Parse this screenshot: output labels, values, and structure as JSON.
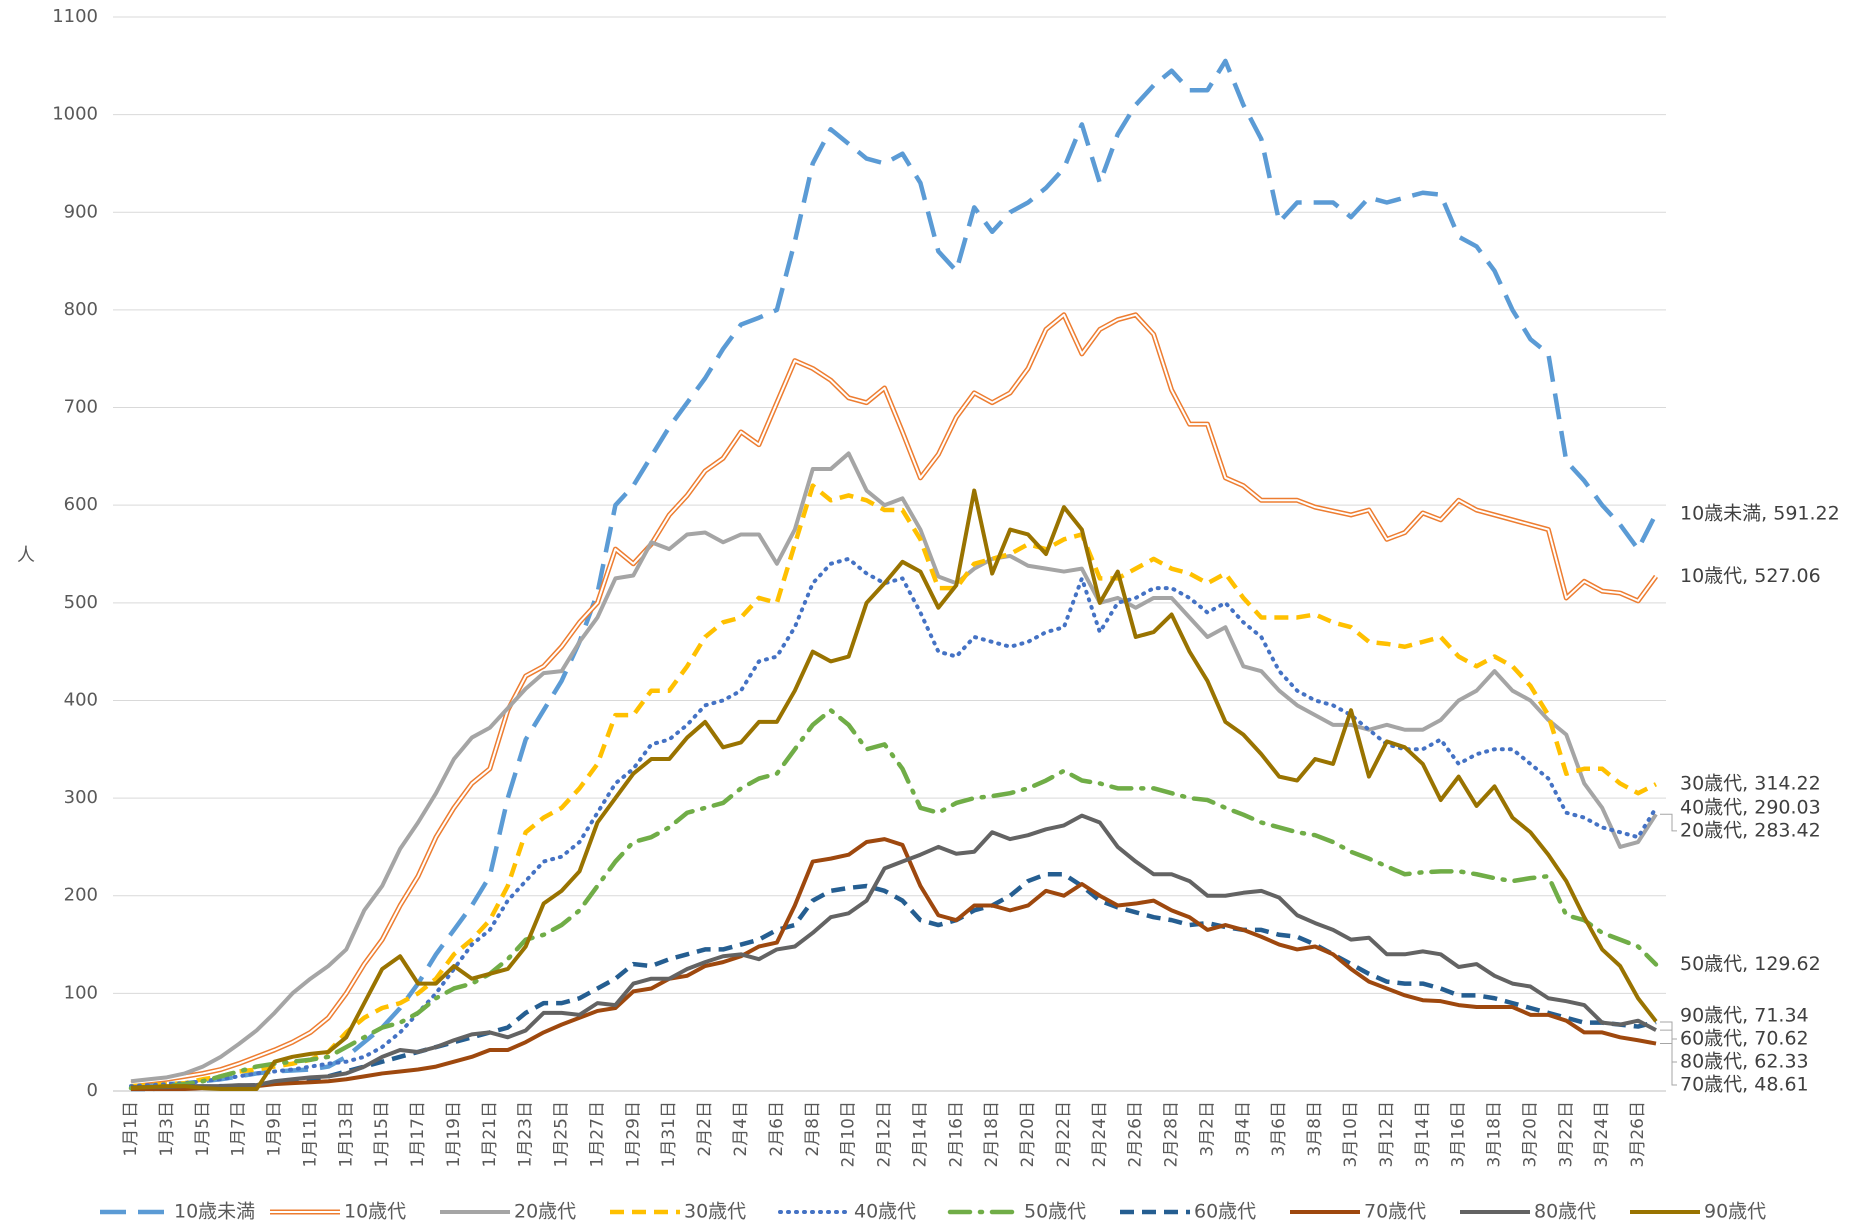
{
  "chart_data": {
    "type": "line",
    "y_label": "人",
    "ylim": [
      0,
      1100
    ],
    "yticks": [
      0,
      100,
      200,
      300,
      400,
      500,
      600,
      700,
      800,
      900,
      1000,
      1100
    ],
    "grid": true,
    "categories": [
      "1月1日",
      null,
      "1月3日",
      null,
      "1月5日",
      null,
      "1月7日",
      null,
      "1月9日",
      null,
      "1月11日",
      null,
      "1月13日",
      null,
      "1月15日",
      null,
      "1月17日",
      null,
      "1月19日",
      null,
      "1月21日",
      null,
      "1月23日",
      null,
      "1月25日",
      null,
      "1月27日",
      null,
      "1月29日",
      null,
      "1月31日",
      null,
      "2月2日",
      null,
      "2月4日",
      null,
      "2月6日",
      null,
      "2月8日",
      null,
      "2月10日",
      null,
      "2月12日",
      null,
      "2月14日",
      null,
      "2月16日",
      null,
      "2月18日",
      null,
      "2月20日",
      null,
      "2月22日",
      null,
      "2月24日",
      null,
      "2月26日",
      null,
      "2月28日",
      null,
      "3月2日",
      null,
      "3月4日",
      null,
      "3月6日",
      null,
      "3月8日",
      null,
      "3月10日",
      null,
      "3月12日",
      null,
      "3月14日",
      null,
      "3月16日",
      null,
      "3月18日",
      null,
      "3月20日",
      null,
      "3月22日",
      null,
      "3月24日",
      null,
      "3月26日",
      null
    ],
    "series": [
      {
        "name": "10歳未満",
        "color": "#5B9BD5",
        "style": "longdash",
        "end_label": "10歳未満, 591.22",
        "values": [
          5,
          6,
          7,
          8,
          10,
          12,
          15,
          18,
          20,
          21,
          22,
          25,
          35,
          50,
          65,
          85,
          110,
          140,
          165,
          190,
          220,
          300,
          360,
          390,
          420,
          460,
          510,
          600,
          620,
          650,
          680,
          705,
          730,
          760,
          785,
          792,
          800,
          870,
          950,
          985,
          970,
          955,
          950,
          960,
          930,
          860,
          840,
          905,
          880,
          900,
          910,
          925,
          945,
          990,
          930,
          980,
          1010,
          1030,
          1045,
          1025,
          1025,
          1055,
          1010,
          975,
          890,
          910,
          910,
          910,
          895,
          915,
          910,
          915,
          920,
          918,
          875,
          865,
          840,
          800,
          770,
          755,
          645,
          625,
          600,
          580,
          555,
          591.22
        ]
      },
      {
        "name": "10歳代",
        "color": "#ED7D31",
        "style": "double",
        "end_label": "10歳代, 527.06",
        "values": [
          8,
          10,
          12,
          15,
          18,
          22,
          28,
          35,
          42,
          50,
          60,
          75,
          100,
          130,
          155,
          190,
          220,
          260,
          290,
          315,
          330,
          390,
          425,
          435,
          455,
          480,
          500,
          555,
          540,
          560,
          590,
          610,
          635,
          648,
          675,
          662,
          705,
          748,
          740,
          728,
          710,
          705,
          720,
          675,
          628,
          652,
          690,
          715,
          705,
          715,
          740,
          780,
          795,
          755,
          780,
          790,
          795,
          775,
          718,
          683,
          683,
          628,
          620,
          605,
          605,
          605,
          598,
          594,
          590,
          595,
          565,
          572,
          592,
          585,
          605,
          595,
          590,
          585,
          580,
          575,
          505,
          522,
          512,
          510,
          502,
          527.06
        ]
      },
      {
        "name": "20歳代",
        "color": "#A5A5A5",
        "style": "solid",
        "end_label": "20歳代, 283.42",
        "values": [
          10,
          12,
          14,
          18,
          25,
          35,
          48,
          62,
          80,
          100,
          115,
          128,
          145,
          185,
          210,
          248,
          275,
          305,
          340,
          362,
          372,
          392,
          412,
          428,
          430,
          460,
          485,
          525,
          528,
          562,
          555,
          570,
          572,
          562,
          570,
          570,
          540,
          575,
          637,
          637,
          653,
          615,
          600,
          607,
          575,
          527,
          520,
          535,
          545,
          548,
          538,
          535,
          532,
          535,
          500,
          505,
          495,
          505,
          505,
          485,
          465,
          475,
          435,
          430,
          410,
          395,
          385,
          375,
          375,
          370,
          375,
          370,
          370,
          380,
          400,
          410,
          430,
          410,
          400,
          380,
          365,
          315,
          290,
          250,
          255,
          283.42
        ]
      },
      {
        "name": "30歳代",
        "color": "#FFC000",
        "style": "dash",
        "end_label": "30歳代, 314.22",
        "values": [
          5,
          6,
          7,
          8,
          12,
          15,
          20,
          22,
          25,
          28,
          32,
          40,
          60,
          75,
          85,
          90,
          100,
          115,
          140,
          155,
          175,
          210,
          265,
          280,
          290,
          310,
          335,
          385,
          385,
          410,
          410,
          435,
          465,
          480,
          485,
          505,
          500,
          560,
          620,
          605,
          610,
          605,
          595,
          595,
          565,
          515,
          515,
          540,
          545,
          550,
          560,
          555,
          565,
          570,
          525,
          525,
          535,
          545,
          535,
          530,
          520,
          530,
          505,
          485,
          485,
          485,
          488,
          480,
          475,
          460,
          458,
          455,
          460,
          465,
          445,
          435,
          445,
          435,
          415,
          385,
          325,
          330,
          330,
          315,
          305,
          314.22
        ]
      },
      {
        "name": "40歳代",
        "color": "#4472C4",
        "style": "dot",
        "end_label": "40歳代, 290.03",
        "values": [
          5,
          6,
          7,
          8,
          10,
          12,
          15,
          18,
          20,
          22,
          25,
          28,
          30,
          35,
          45,
          60,
          80,
          100,
          125,
          150,
          165,
          195,
          215,
          235,
          240,
          255,
          285,
          315,
          330,
          355,
          360,
          375,
          395,
          400,
          410,
          440,
          445,
          475,
          520,
          540,
          545,
          530,
          520,
          525,
          490,
          450,
          445,
          465,
          460,
          455,
          460,
          470,
          475,
          525,
          470,
          500,
          505,
          515,
          515,
          505,
          490,
          500,
          480,
          465,
          430,
          410,
          400,
          395,
          385,
          370,
          355,
          350,
          350,
          360,
          335,
          345,
          350,
          350,
          335,
          320,
          285,
          280,
          270,
          265,
          260,
          290.03
        ]
      },
      {
        "name": "50歳代",
        "color": "#70AD47",
        "style": "dashdot",
        "end_label": "50歳代, 129.62",
        "values": [
          3,
          4,
          5,
          7,
          10,
          15,
          20,
          25,
          28,
          30,
          32,
          35,
          45,
          55,
          65,
          70,
          80,
          95,
          105,
          110,
          120,
          135,
          155,
          160,
          170,
          185,
          210,
          235,
          255,
          260,
          270,
          285,
          290,
          295,
          310,
          320,
          325,
          350,
          375,
          390,
          375,
          350,
          355,
          330,
          290,
          285,
          295,
          300,
          302,
          305,
          310,
          318,
          328,
          318,
          315,
          310,
          310,
          310,
          305,
          300,
          298,
          290,
          283,
          275,
          270,
          265,
          262,
          255,
          245,
          238,
          230,
          222,
          224,
          225,
          225,
          222,
          218,
          215,
          218,
          220,
          180,
          175,
          162,
          155,
          148,
          129.62
        ]
      },
      {
        "name": "60歳代",
        "color": "#255E91",
        "style": "dash",
        "end_label": "60歳代, 70.62",
        "values": [
          2,
          2,
          3,
          3,
          4,
          5,
          5,
          6,
          8,
          10,
          12,
          15,
          20,
          25,
          30,
          35,
          40,
          45,
          50,
          55,
          60,
          65,
          80,
          90,
          90,
          95,
          105,
          115,
          130,
          128,
          135,
          140,
          145,
          145,
          150,
          155,
          165,
          170,
          195,
          205,
          208,
          210,
          205,
          195,
          175,
          170,
          175,
          185,
          190,
          200,
          215,
          222,
          222,
          210,
          195,
          188,
          183,
          178,
          175,
          170,
          172,
          168,
          165,
          165,
          160,
          158,
          150,
          140,
          130,
          120,
          112,
          110,
          110,
          105,
          98,
          98,
          95,
          90,
          85,
          80,
          75,
          70,
          70,
          68,
          66,
          70.62
        ]
      },
      {
        "name": "70歳代",
        "color": "#9E480E",
        "style": "solid",
        "end_label": "70歳代, 48.61",
        "values": [
          2,
          2,
          2,
          2,
          3,
          3,
          3,
          5,
          7,
          8,
          9,
          10,
          12,
          15,
          18,
          20,
          22,
          25,
          30,
          35,
          42,
          42,
          50,
          60,
          68,
          75,
          82,
          85,
          102,
          105,
          115,
          118,
          128,
          132,
          138,
          148,
          152,
          190,
          235,
          238,
          242,
          255,
          258,
          252,
          210,
          180,
          175,
          190,
          190,
          185,
          190,
          205,
          200,
          212,
          200,
          190,
          192,
          195,
          185,
          178,
          165,
          170,
          165,
          158,
          150,
          145,
          148,
          140,
          125,
          112,
          105,
          98,
          93,
          92,
          88,
          86,
          86,
          86,
          78,
          78,
          72,
          60,
          60,
          55,
          52,
          48.61
        ]
      },
      {
        "name": "80歳代",
        "color": "#636363",
        "style": "solid",
        "end_label": "80歳代, 62.33",
        "values": [
          4,
          4,
          4,
          5,
          5,
          5,
          6,
          6,
          10,
          12,
          14,
          15,
          18,
          25,
          35,
          42,
          40,
          45,
          52,
          58,
          60,
          55,
          62,
          80,
          80,
          78,
          90,
          88,
          110,
          115,
          115,
          125,
          132,
          138,
          140,
          135,
          145,
          148,
          162,
          178,
          182,
          195,
          228,
          235,
          242,
          250,
          243,
          245,
          265,
          258,
          262,
          268,
          272,
          282,
          275,
          250,
          235,
          222,
          222,
          215,
          200,
          200,
          203,
          205,
          198,
          180,
          172,
          165,
          155,
          157,
          140,
          140,
          143,
          140,
          127,
          130,
          118,
          110,
          107,
          95,
          92,
          88,
          70,
          68,
          72,
          62.33
        ]
      },
      {
        "name": "90歳代",
        "color": "#997300",
        "style": "solid",
        "end_label": "90歳代, 71.34",
        "values": [
          3,
          4,
          5,
          5,
          3,
          2,
          2,
          2,
          30,
          35,
          38,
          40,
          55,
          90,
          125,
          138,
          110,
          110,
          128,
          115,
          120,
          125,
          148,
          192,
          205,
          225,
          275,
          300,
          325,
          340,
          340,
          362,
          378,
          352,
          357,
          378,
          378,
          410,
          450,
          440,
          445,
          500,
          520,
          542,
          532,
          495,
          518,
          615,
          530,
          575,
          570,
          550,
          598,
          575,
          500,
          532,
          465,
          470,
          488,
          450,
          420,
          378,
          365,
          345,
          322,
          318,
          340,
          335,
          390,
          322,
          358,
          352,
          335,
          298,
          322,
          292,
          312,
          280,
          265,
          242,
          215,
          178,
          145,
          128,
          95,
          71.34
        ]
      }
    ]
  }
}
